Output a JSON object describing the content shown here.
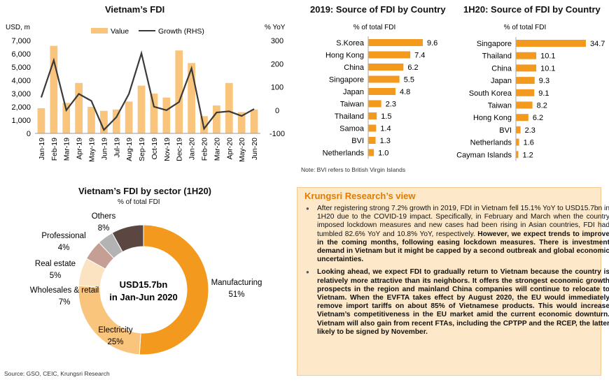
{
  "chart_data": [
    {
      "type": "bar+line",
      "title": "Vietnam’s FDI",
      "y_left_label": "USD, m",
      "y_right_label": "% YoY",
      "ylim_left": [
        0,
        7000
      ],
      "ylim_right": [
        -100,
        300
      ],
      "left_ticks": [
        "7,000",
        "6,000",
        "5,000",
        "4,000",
        "3,000",
        "2,000",
        "1,000",
        "0"
      ],
      "right_ticks": [
        "300",
        "200",
        "100",
        "0",
        "-100"
      ],
      "categories": [
        "Jan-19",
        "Feb-19",
        "Mar-19",
        "Apr-19",
        "May-19",
        "Jun-19",
        "Jul-19",
        "Aug-19",
        "Sep-19",
        "Oct-19",
        "Nov-19",
        "Dec-19",
        "Jan-20",
        "Feb-20",
        "Mar-20",
        "Apr-20",
        "May-20",
        "Jun-20"
      ],
      "series": [
        {
          "name": "Value",
          "kind": "bar",
          "color": "#f9c57d",
          "values": [
            1900,
            6600,
            2300,
            3800,
            2000,
            1700,
            1800,
            2400,
            3600,
            3000,
            2700,
            6250,
            5300,
            1300,
            2100,
            3800,
            1600,
            1800
          ]
        },
        {
          "name": "Growth (RHS)",
          "kind": "line",
          "axis": "right",
          "color": "#3a3a3a",
          "values": [
            55,
            215,
            0,
            70,
            40,
            -85,
            -30,
            70,
            245,
            15,
            0,
            35,
            180,
            -80,
            -10,
            -5,
            -25,
            5
          ]
        }
      ]
    },
    {
      "type": "bar",
      "orientation": "horizontal",
      "title": "2019: Source of FDI by Country",
      "subtitle": "% of total FDI",
      "color": "#f39a1e",
      "categories": [
        "S.Korea",
        "Hong Kong",
        "China",
        "Singapore",
        "Japan",
        "Taiwan",
        "Thailand",
        "Samoa",
        "BVI",
        "Netherlands"
      ],
      "values": [
        9.6,
        7.4,
        6.2,
        5.5,
        4.8,
        2.3,
        1.5,
        1.4,
        1.3,
        1.0
      ],
      "labels": [
        "9.6",
        "7.4",
        "6.2",
        "5.5",
        "4.8",
        "2.3",
        "1.5",
        "1.4",
        "1.3",
        "1.0"
      ]
    },
    {
      "type": "bar",
      "orientation": "horizontal",
      "title": "1H20: Source of FDI by Country",
      "subtitle": "% of total FDI",
      "color": "#f39a1e",
      "categories": [
        "Singapore",
        "Thailand",
        "China",
        "Japan",
        "South Korea",
        "Taiwan",
        "Hong Kong",
        "BVI",
        "Netherlands",
        "Cayman Islands"
      ],
      "values": [
        34.7,
        10.1,
        10.1,
        9.3,
        9.1,
        8.2,
        6.2,
        2.3,
        1.6,
        1.2
      ],
      "labels": [
        "34.7",
        "10.1",
        "10.1",
        "9.3",
        "9.1",
        "8.2",
        "6.2",
        "2.3",
        "1.6",
        "1.2"
      ]
    },
    {
      "type": "pie",
      "variant": "donut",
      "title": "Vietnam’s FDI by sector (1H20)",
      "subtitle": "% of total FDI",
      "center_line1": "USD15.7bn",
      "center_line2": "in Jan-Jun 2020",
      "slices": [
        {
          "name": "Manufacturing",
          "value": 51,
          "label": "51%",
          "color": "#f39a1e"
        },
        {
          "name": "Electricity",
          "value": 25,
          "label": "25%",
          "color": "#f9c57d"
        },
        {
          "name": "Wholesales & retail",
          "value": 7,
          "label": "7%",
          "color": "#fbe2c0"
        },
        {
          "name": "Real estate",
          "value": 5,
          "label": "5%",
          "color": "#c59e94"
        },
        {
          "name": "Professional",
          "value": 4,
          "label": "4%",
          "color": "#b3b3b3"
        },
        {
          "name": "Others",
          "value": 8,
          "label": "8%",
          "color": "#5c4641"
        }
      ]
    }
  ],
  "note": "Note: BVI refers to British Virgin Islands",
  "source": "Source: GSO, CEIC, Krungsri Research",
  "view": {
    "heading": "Krungsri Research’s view",
    "p1_normal": "After registering strong 7.2% growth in 2019, FDI in Vietnam fell 15.1% YoY to USD15.7bn in 1H20 due to the COVID-19 impact. Specifically, in February and March when the country imposed lockdown measures and new cases had been rising in Asian countries, FDI had tumbled 82.6% YoY and 10.8% YoY, respectively. ",
    "p1_bold": "However, we expect trends to improve in the coming months, following easing lockdown measures. There is investment demand in Vietnam but it might be capped by a second outbreak and global economic uncertainties.",
    "p2_bold": "Looking ahead, we expect FDI to gradually return to Vietnam because the country is relatively more attractive than its neighbors. It offers the strongest economic growth prospects in the region and mainland China companies will continue to relocate to Vietnam. When the EVFTA takes effect by August 2020, the EU would immediately remove import tariffs on about 85% of Vietnamese products. This would increase Vietnam’s competitiveness in the EU market amid the current economic downturn. Vietnam will also gain from recent FTAs, including the CPTPP and the RCEP, the latter likely to be signed by November."
  }
}
